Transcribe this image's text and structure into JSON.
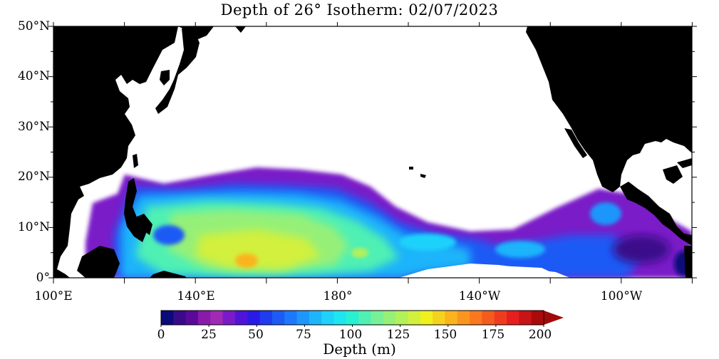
{
  "title": "Depth of 26° Isotherm: 02/07/2023",
  "y_axis": {
    "labels": [
      "50°N",
      "40°N",
      "30°N",
      "20°N",
      "10°N",
      "0°"
    ]
  },
  "x_axis": {
    "labels": [
      "100°E",
      "140°E",
      "180°",
      "140°W",
      "100°W"
    ]
  },
  "colorbar": {
    "title": "Depth (m)",
    "tick_labels": [
      "0",
      "25",
      "50",
      "75",
      "100",
      "125",
      "150",
      "175",
      "200"
    ],
    "colors": [
      "#0a0a7a",
      "#3a0a8a",
      "#5a0a9a",
      "#8a1aaa",
      "#a02ab5",
      "#7a1ac8",
      "#5014d8",
      "#2a1ae8",
      "#1e3cf0",
      "#1e5af5",
      "#1e78fa",
      "#1e96fa",
      "#1eb4fa",
      "#1ed2fa",
      "#1ee6f0",
      "#28f0d2",
      "#50f0b4",
      "#78f096",
      "#96f078",
      "#b4f05a",
      "#d2f03c",
      "#f0f01e",
      "#f5d21e",
      "#fab41e",
      "#fa961e",
      "#fa781e",
      "#f55a1e",
      "#f03c1e",
      "#e61e1e",
      "#c81414",
      "#aa0a0a"
    ],
    "arrow_color": "#a00a0a"
  },
  "land_color": "#000000",
  "ocean_no_data_color": "#ffffff"
}
